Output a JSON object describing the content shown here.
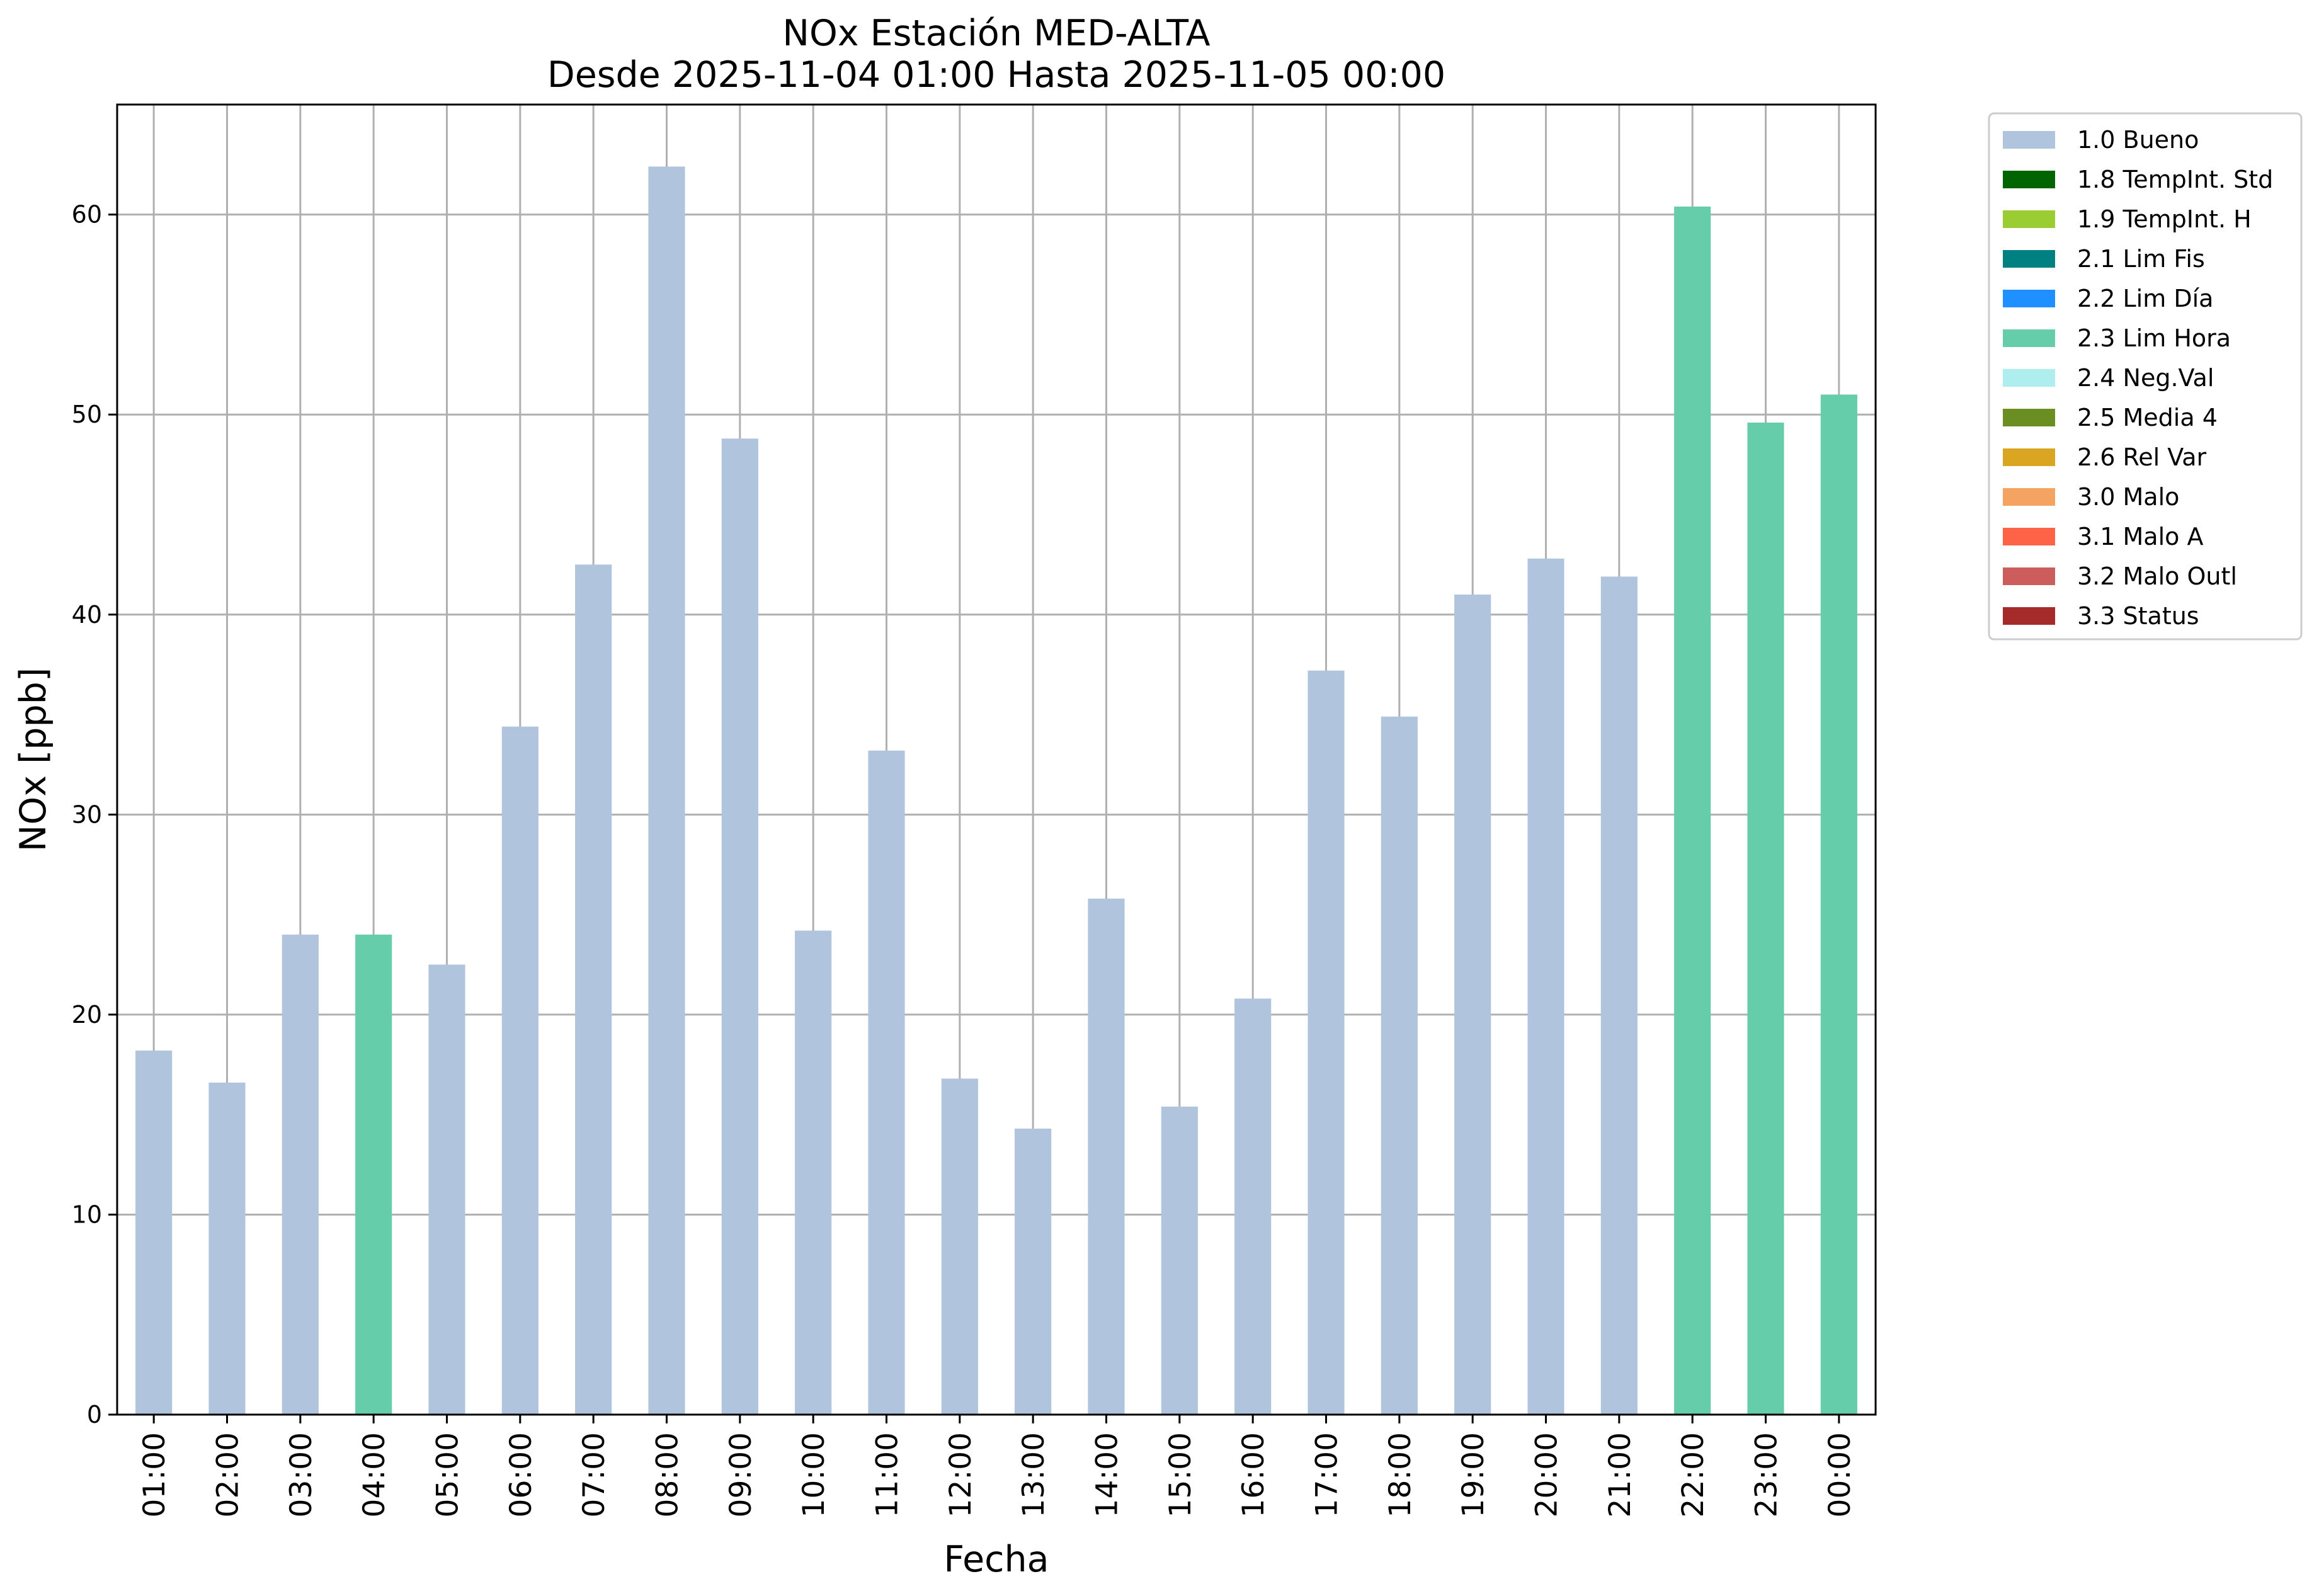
{
  "chart_data": {
    "type": "bar",
    "title": "NOx Estación MED-ALTA",
    "subtitle": "Desde 2025-11-04 01:00 Hasta 2025-11-05 00:00",
    "xlabel": "Fecha",
    "ylabel": "NOx [ppb]",
    "ylim": [
      0,
      65.5
    ],
    "yticks": [
      0,
      10,
      20,
      30,
      40,
      50,
      60
    ],
    "grid": true,
    "legend_position": "outside right, top",
    "categories": [
      "01:00",
      "02:00",
      "03:00",
      "04:00",
      "05:00",
      "06:00",
      "07:00",
      "08:00",
      "09:00",
      "10:00",
      "11:00",
      "12:00",
      "13:00",
      "14:00",
      "15:00",
      "16:00",
      "17:00",
      "18:00",
      "19:00",
      "20:00",
      "21:00",
      "22:00",
      "23:00",
      "00:00"
    ],
    "values": [
      18.2,
      16.6,
      24.0,
      24.0,
      22.5,
      34.4,
      42.5,
      62.4,
      48.8,
      24.2,
      33.2,
      16.8,
      14.3,
      25.8,
      15.4,
      20.8,
      37.2,
      34.9,
      41.0,
      42.8,
      41.9,
      60.4,
      49.6,
      51.0
    ],
    "flags": [
      "1.0 Bueno",
      "1.0 Bueno",
      "1.0 Bueno",
      "2.3 Lim Hora",
      "1.0 Bueno",
      "1.0 Bueno",
      "1.0 Bueno",
      "1.0 Bueno",
      "1.0 Bueno",
      "1.0 Bueno",
      "1.0 Bueno",
      "1.0 Bueno",
      "1.0 Bueno",
      "1.0 Bueno",
      "1.0 Bueno",
      "1.0 Bueno",
      "1.0 Bueno",
      "1.0 Bueno",
      "1.0 Bueno",
      "1.0 Bueno",
      "1.0 Bueno",
      "2.3 Lim Hora",
      "2.3 Lim Hora",
      "2.3 Lim Hora"
    ],
    "legend": [
      {
        "label": "1.0 Bueno",
        "color": "#b0c4de"
      },
      {
        "label": "1.8 TempInt. Std",
        "color": "#006400"
      },
      {
        "label": "1.9 TempInt. H",
        "color": "#9acd32"
      },
      {
        "label": "2.1 Lim Fis",
        "color": "#008080"
      },
      {
        "label": "2.2 Lim Día",
        "color": "#1e90ff"
      },
      {
        "label": "2.3 Lim Hora",
        "color": "#66cdaa"
      },
      {
        "label": "2.4 Neg.Val",
        "color": "#afeeee"
      },
      {
        "label": "2.5 Media 4",
        "color": "#6b8e23"
      },
      {
        "label": "2.6 Rel Var",
        "color": "#daa520"
      },
      {
        "label": "3.0 Malo",
        "color": "#f4a460"
      },
      {
        "label": "3.1 Malo A",
        "color": "#ff6347"
      },
      {
        "label": "3.2 Malo Outl",
        "color": "#cd5c5c"
      },
      {
        "label": "3.3 Status",
        "color": "#a52a2a"
      }
    ]
  }
}
